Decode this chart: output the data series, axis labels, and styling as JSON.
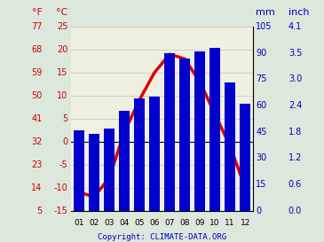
{
  "months": [
    "01",
    "02",
    "03",
    "04",
    "05",
    "06",
    "07",
    "08",
    "09",
    "10",
    "11",
    "12"
  ],
  "precipitation_mm": [
    46,
    44,
    47,
    57,
    64,
    65,
    90,
    87,
    91,
    93,
    73,
    61
  ],
  "temperature_c": [
    -11,
    -12,
    -8,
    2,
    9,
    15,
    19,
    18,
    13,
    6,
    -1,
    -10
  ],
  "bar_color": "#0000cc",
  "line_color": "#dd0000",
  "left_c_ticks": [
    -15,
    -10,
    -5,
    0,
    5,
    10,
    15,
    20,
    25
  ],
  "left_f_ticks": [
    5,
    14,
    23,
    32,
    41,
    50,
    59,
    68,
    77
  ],
  "right_mm_ticks": [
    0,
    15,
    30,
    45,
    60,
    75,
    90,
    105
  ],
  "right_inch_ticks": [
    "0.0",
    "0.6",
    "1.2",
    "1.8",
    "2.4",
    "3.0",
    "3.5",
    "4.1"
  ],
  "temp_color": "#cc0000",
  "precip_color": "#0000bb",
  "copyright_text": "Copyright: CLIMATE-DATA.ORG",
  "bg_color": "#dce8dc",
  "plot_bg": "#f0f0e0",
  "temp_c_min": -15,
  "temp_c_max": 25,
  "precip_min": 0,
  "precip_max": 105,
  "grid_color": "#c8c8c8",
  "label_F": "°F",
  "label_C": "°C",
  "label_mm": "mm",
  "label_inch": "inch"
}
